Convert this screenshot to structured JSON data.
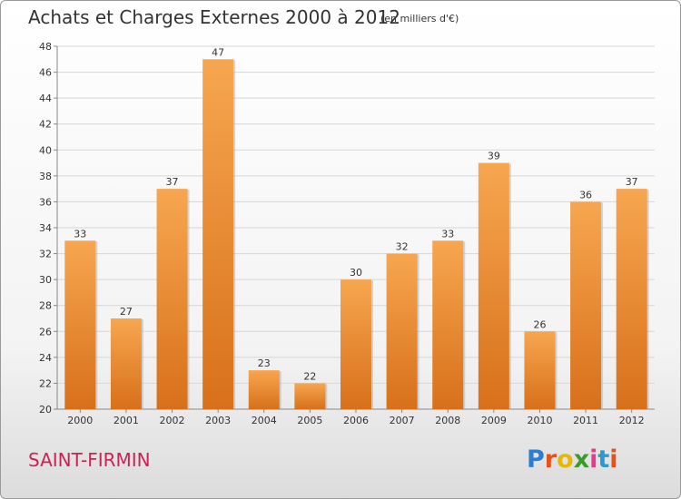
{
  "header": {
    "title": "Achats et Charges Externes 2000 à 2012",
    "unit": "(en milliers d'€)"
  },
  "footer": {
    "place": "SAINT-FIRMIN",
    "brand": "Proxiti",
    "brand_colors": [
      "#2a7fd0",
      "#e8501a",
      "#e8b800",
      "#3a9a2a",
      "#e83a8a",
      "#2a9ad0",
      "#e8501a"
    ]
  },
  "colors": {
    "bar_top": "#f7a650",
    "bar_bottom": "#d8701a",
    "accent": "#cc2255"
  },
  "chart_data": {
    "type": "bar",
    "categories": [
      "2000",
      "2001",
      "2002",
      "2003",
      "2004",
      "2005",
      "2006",
      "2007",
      "2008",
      "2009",
      "2010",
      "2011",
      "2012"
    ],
    "values": [
      33,
      27,
      37,
      47,
      23,
      22,
      30,
      32,
      33,
      39,
      26,
      36,
      37
    ],
    "title": "Achats et Charges Externes 2000 à 2012",
    "xlabel": "",
    "ylabel": "",
    "ylim": [
      20,
      48
    ],
    "yticks": [
      20,
      22,
      24,
      26,
      28,
      30,
      32,
      34,
      36,
      38,
      40,
      42,
      44,
      46,
      48
    ],
    "grid": true,
    "legend": "none"
  }
}
